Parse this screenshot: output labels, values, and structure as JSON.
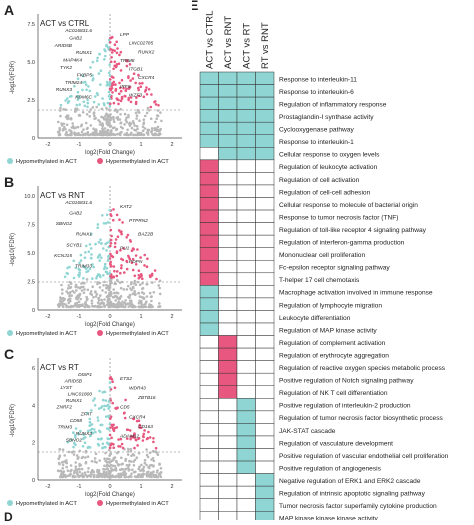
{
  "panels": [
    {
      "letter": "A",
      "title": "ACT vs CTRL",
      "ylabel": "-log10(FDR)",
      "xlabel": "log2(Fold Change)",
      "xticks": [
        "-2",
        "-1",
        "0",
        "1",
        "2"
      ],
      "yticks": [
        "0",
        "2.5",
        "5.0",
        "7.5"
      ],
      "left_genes": [
        "AC016831.6",
        "GAB2",
        "ARID5B",
        "RUNX1",
        "MAP4K4",
        "TYK2",
        "FKBP5",
        "TRIM24",
        "RUNX3",
        "KDM6C"
      ],
      "right_genes": [
        "LPP",
        "LINC02785",
        "RUNX2",
        "TRIM8",
        "ITGB1",
        "CXCR4",
        "IRF8",
        "IKZF3"
      ],
      "legend_left": "Hypomethylated in ACT",
      "legend_right": "Hypermethylated in ACT"
    },
    {
      "letter": "B",
      "title": "ACT vs RNT",
      "ylabel": "-log10(FDR)",
      "xlabel": "log2(Fold Change)",
      "xticks": [
        "-2",
        "-1",
        "0",
        "1",
        "2"
      ],
      "yticks": [
        "0",
        "2.5",
        "5.0",
        "7.5",
        "10.0"
      ],
      "left_genes": [
        "AC016831.6",
        "GAB2",
        "SBNO2",
        "RUNX1",
        "SCYB1",
        "KCNJ15",
        "TRIM33"
      ],
      "right_genes": [
        "KAT2",
        "PTPRN2",
        "BAZ2B",
        "PU1",
        "PDPN"
      ],
      "legend_left": "Hypomethylated in ACT",
      "legend_right": "Hypermethylated in ACT"
    },
    {
      "letter": "C",
      "title": "ACT vs RT",
      "ylabel": "-log10(FDR)",
      "xlabel": "log2(Fold Change)",
      "xticks": [
        "-2",
        "-1",
        "0",
        "1",
        "2"
      ],
      "yticks": [
        "0",
        "2",
        "4",
        "6"
      ],
      "left_genes": [
        "DISP1",
        "ARID5B",
        "LYST",
        "LINC01800",
        "RUNX1",
        "ZNRF2",
        "ZFAT",
        "CD58",
        "TRIM3",
        "RUNX3",
        "SBNO2"
      ],
      "right_genes": [
        "ETS2",
        "WDR43",
        "ZBTB16",
        "CD5",
        "CXCR4",
        "CD163",
        "ADAM12"
      ],
      "legend_left": "Hypomethylated in ACT",
      "legend_right": "Hypermethylated in ACT"
    }
  ],
  "heatmap": {
    "letter": "E",
    "columns": [
      "ACT vs CTRL",
      "ACT vs RNT",
      "ACT vs RT",
      "RT vs RNT"
    ],
    "colors": {
      "cyan": "#8fd5d3",
      "pink": "#e8577f",
      "blank": "#ffffff"
    },
    "rows": [
      {
        "label": "Response to interleukin-11",
        "cells": [
          "c",
          "c",
          "c",
          "c"
        ]
      },
      {
        "label": "Response to interleukin-6",
        "cells": [
          "c",
          "c",
          "c",
          "c"
        ]
      },
      {
        "label": "Regulation of inflammatory response",
        "cells": [
          "c",
          "c",
          "c",
          "c"
        ]
      },
      {
        "label": "Prostaglandin-I synthase activity",
        "cells": [
          "c",
          "c",
          "c",
          "c"
        ]
      },
      {
        "label": "Cyclooxygenase pathway",
        "cells": [
          "c",
          "c",
          "c",
          "c"
        ]
      },
      {
        "label": "Response to interleukin-1",
        "cells": [
          "c",
          "c",
          "c",
          "c"
        ]
      },
      {
        "label": "Cellular response to oxygen levels",
        "cells": [
          "w",
          "c",
          "c",
          "c"
        ]
      },
      {
        "label": "Regulation of leukocyte activation",
        "cells": [
          "p",
          "w",
          "w",
          "w"
        ]
      },
      {
        "label": "Regulation of cell activation",
        "cells": [
          "p",
          "w",
          "w",
          "w"
        ]
      },
      {
        "label": "Regulation of cell-cell adhesion",
        "cells": [
          "p",
          "w",
          "w",
          "w"
        ]
      },
      {
        "label": "Cellular response to molecule of bacterial origin",
        "cells": [
          "p",
          "w",
          "w",
          "w"
        ]
      },
      {
        "label": "Response to tumor necrosis factor (TNF)",
        "cells": [
          "p",
          "w",
          "w",
          "w"
        ]
      },
      {
        "label": "Regulation of toll-like receptor 4 signaling pathway",
        "cells": [
          "p",
          "w",
          "w",
          "w"
        ]
      },
      {
        "label": "Regulation of interferon-gamma production",
        "cells": [
          "p",
          "w",
          "w",
          "w"
        ]
      },
      {
        "label": "Mononuclear cell proliferation",
        "cells": [
          "p",
          "w",
          "w",
          "w"
        ]
      },
      {
        "label": "Fc-epsilon receptor signaling pathway",
        "cells": [
          "p",
          "w",
          "w",
          "w"
        ]
      },
      {
        "label": "T-helper 17 cell chemotaxis",
        "cells": [
          "p",
          "w",
          "w",
          "w"
        ]
      },
      {
        "label": "Macrophage activation involved in immune response",
        "cells": [
          "c",
          "w",
          "w",
          "w"
        ]
      },
      {
        "label": "Regulation of lymphocyte migration",
        "cells": [
          "c",
          "w",
          "w",
          "w"
        ]
      },
      {
        "label": "Leukocyte differentiation",
        "cells": [
          "c",
          "w",
          "w",
          "w"
        ]
      },
      {
        "label": "Regulation of MAP kinase activity",
        "cells": [
          "c",
          "w",
          "w",
          "w"
        ]
      },
      {
        "label": "Regulation of complement activation",
        "cells": [
          "w",
          "p",
          "w",
          "w"
        ]
      },
      {
        "label": "Regulation of erythrocyte aggregation",
        "cells": [
          "w",
          "p",
          "w",
          "w"
        ]
      },
      {
        "label": "Regulation of reactive oxygen species metabolic process",
        "cells": [
          "w",
          "p",
          "w",
          "w"
        ]
      },
      {
        "label": "Positive regulation of Notch signaling pathway",
        "cells": [
          "w",
          "p",
          "w",
          "w"
        ]
      },
      {
        "label": "Regulation of NK T cell differentiation",
        "cells": [
          "w",
          "p",
          "w",
          "w"
        ]
      },
      {
        "label": "Positive regulation of interleukin-2 production",
        "cells": [
          "w",
          "w",
          "c",
          "w"
        ]
      },
      {
        "label": "Regulation of tumor necrosis factor biosynthetic process",
        "cells": [
          "w",
          "w",
          "c",
          "w"
        ]
      },
      {
        "label": "JAK-STAT cascade",
        "cells": [
          "w",
          "w",
          "c",
          "w"
        ]
      },
      {
        "label": "Regulation of vasculature development",
        "cells": [
          "w",
          "w",
          "c",
          "w"
        ]
      },
      {
        "label": "Positive regulation of vascular endothelial cell proliferation",
        "cells": [
          "w",
          "w",
          "c",
          "w"
        ]
      },
      {
        "label": "Positive regulation of angiogenesis",
        "cells": [
          "w",
          "w",
          "c",
          "w"
        ]
      },
      {
        "label": "Negative regulation of ERK1 and ERK2 cascade",
        "cells": [
          "w",
          "w",
          "w",
          "c"
        ]
      },
      {
        "label": "Regulation of intrinsic apoptotic signaling pathway",
        "cells": [
          "w",
          "w",
          "w",
          "c"
        ]
      },
      {
        "label": "Tumor necrosis factor superfamily cytokine production",
        "cells": [
          "w",
          "w",
          "w",
          "c"
        ]
      },
      {
        "label": "MAP kinase kinase kinase activity",
        "cells": [
          "w",
          "w",
          "w",
          "c"
        ]
      },
      {
        "label": "",
        "cells": [
          "w",
          "w",
          "w",
          "w"
        ]
      }
    ]
  },
  "footer_letter": "D"
}
